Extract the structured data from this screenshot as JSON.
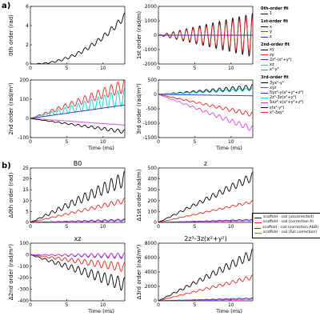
{
  "panel_labels": {
    "a": "a)",
    "b": "b)"
  },
  "legend_a": {
    "groups": [
      {
        "header": "0th-order fit",
        "items": [
          {
            "label": "1",
            "color": "#000000"
          }
        ]
      },
      {
        "header": "1st-order fit",
        "items": [
          {
            "label": "x",
            "color": "#000000"
          },
          {
            "label": "y",
            "color": "#e8231f"
          },
          {
            "label": "z",
            "color": "#2c2cc8"
          }
        ]
      },
      {
        "header": "2nd-order fit",
        "items": [
          {
            "label": "xy",
            "color": "#000000"
          },
          {
            "label": "zy",
            "color": "#e8231f"
          },
          {
            "label": "2z²-(x²+y²)",
            "color": "#2c2cc8"
          },
          {
            "label": "xz",
            "color": "#00d5d5"
          },
          {
            "label": "x²-y²",
            "color": "#e040e0"
          }
        ]
      },
      {
        "header": "3rd-order fit",
        "items": [
          {
            "label": "3yx²-y³",
            "color": "#000000"
          },
          {
            "label": "xyz",
            "color": "#e8231f"
          },
          {
            "label": "5yz²-y(x²+y²+z²)",
            "color": "#2c2cc8"
          },
          {
            "label": "2z³-3z(x²+y²)",
            "color": "#00d5d5"
          },
          {
            "label": "5xz²-x(x²+y²+z²)",
            "color": "#e040e0"
          },
          {
            "label": "z(x²-y²)",
            "color": "#000000"
          },
          {
            "label": "x³-3xy²",
            "color": "#e8231f"
          }
        ]
      }
    ]
  },
  "legend_b": {
    "items": [
      {
        "label": "scaffold - coil (uncorrected)",
        "color": "#000000"
      },
      {
        "label": "scaffold - coil (correction A)",
        "color": "#e8231f"
      },
      {
        "label": "scaffold - coil (correction A&B)",
        "color": "#2c2cc8"
      },
      {
        "label": "scaffold - coil (full correction)",
        "color": "#e040e0"
      }
    ]
  },
  "chart_data": [
    {
      "id": "a1",
      "type": "line",
      "title": "",
      "xlabel": "",
      "ylabel": "0th order (rad)",
      "xlim": [
        0,
        13
      ],
      "ylim": [
        0,
        6
      ],
      "xticks": [
        0,
        5,
        10
      ],
      "yticks": [
        0,
        2,
        4,
        6
      ],
      "series": [
        {
          "color": "#000000",
          "form": "growth",
          "end": 5.0,
          "amp": 0.35,
          "freq": 1.1
        }
      ]
    },
    {
      "id": "a2",
      "type": "line",
      "title": "",
      "xlabel": "",
      "ylabel": "1st order (rad/m)",
      "xlim": [
        0,
        13
      ],
      "ylim": [
        -2000,
        2000
      ],
      "xticks": [
        0,
        5,
        10
      ],
      "yticks": [
        -2000,
        -1000,
        0,
        1000,
        2000
      ],
      "series": [
        {
          "color": "#000000",
          "form": "osc",
          "amp": 1500,
          "freq": 1.1
        },
        {
          "color": "#e8231f",
          "form": "osc",
          "amp": 1250,
          "freq": 1.1
        },
        {
          "color": "#2c2cc8",
          "form": "flat",
          "end": 0
        }
      ]
    },
    {
      "id": "a3",
      "type": "line",
      "title": "",
      "xlabel": "Time (ms)",
      "ylabel": "2nd order (rad/m²)",
      "xlim": [
        0,
        13
      ],
      "ylim": [
        -100,
        200
      ],
      "xticks": [
        0,
        5,
        10
      ],
      "yticks": [
        -100,
        0,
        100,
        200
      ],
      "series": [
        {
          "color": "#e8231f",
          "form": "osc_up",
          "end": 170,
          "amp": 35,
          "freq": 1.1
        },
        {
          "color": "#00d5d5",
          "form": "osc_up",
          "end": 110,
          "amp": 45,
          "freq": 1.1
        },
        {
          "color": "#2c2cc8",
          "form": "drift",
          "end": 70
        },
        {
          "color": "#e040e0",
          "form": "drift",
          "end": -35
        },
        {
          "color": "#000000",
          "form": "osc_down",
          "end": -70,
          "amp": 10,
          "freq": 1.1
        }
      ]
    },
    {
      "id": "a4",
      "type": "line",
      "title": "",
      "xlabel": "Time (ms)",
      "ylabel": "3rd order (rad/m³)",
      "xlim": [
        0,
        13
      ],
      "ylim": [
        -1500,
        500
      ],
      "xticks": [
        0,
        5,
        10
      ],
      "yticks": [
        -1500,
        -1000,
        -500,
        0,
        500
      ],
      "series": [
        {
          "color": "#000000",
          "form": "osc_up",
          "end": 250,
          "amp": 90,
          "freq": 1.1
        },
        {
          "color": "#00d5d5",
          "form": "osc_up",
          "end": 180,
          "amp": 60,
          "freq": 1.1
        },
        {
          "color": "#2c2cc8",
          "form": "drift",
          "end": -50
        },
        {
          "color": "#e8231f",
          "form": "osc_down",
          "end": -700,
          "amp": 80,
          "freq": 1.1
        },
        {
          "color": "#e040e0",
          "form": "osc_down",
          "end": -1200,
          "amp": 100,
          "freq": 1.1
        }
      ]
    },
    {
      "id": "b1",
      "type": "line",
      "title": "B0",
      "xlabel": "",
      "ylabel": "Δ0th order (rad)",
      "xlim": [
        0,
        13
      ],
      "ylim": [
        0,
        25
      ],
      "xticks": [
        0,
        5,
        10
      ],
      "yticks": [
        0,
        5,
        10,
        15,
        20,
        25
      ],
      "series": [
        {
          "color": "#000000",
          "form": "osc_up",
          "end": 20,
          "amp": 3.5,
          "freq": 1.1
        },
        {
          "color": "#e8231f",
          "form": "osc_up",
          "end": 10,
          "amp": 1.2,
          "freq": 1.1
        },
        {
          "color": "#2c2cc8",
          "form": "osc_up",
          "end": 1.2,
          "amp": 0.4,
          "freq": 1.1
        },
        {
          "color": "#e040e0",
          "form": "osc_up",
          "end": 0.8,
          "amp": 0.4,
          "freq": 1.1
        }
      ]
    },
    {
      "id": "b2",
      "type": "line",
      "title": "z",
      "xlabel": "",
      "ylabel": "Δ1st order (rad/m)",
      "xlim": [
        0,
        13
      ],
      "ylim": [
        0,
        500
      ],
      "xticks": [
        0,
        5,
        10
      ],
      "yticks": [
        0,
        100,
        200,
        300,
        400,
        500
      ],
      "series": [
        {
          "color": "#000000",
          "form": "osc_up",
          "end": 420,
          "amp": 40,
          "freq": 1.1
        },
        {
          "color": "#e8231f",
          "form": "osc_up",
          "end": 190,
          "amp": 12,
          "freq": 1.1
        },
        {
          "color": "#2c2cc8",
          "form": "osc_up",
          "end": 25,
          "amp": 4,
          "freq": 1.1
        },
        {
          "color": "#e040e0",
          "form": "osc_up",
          "end": 15,
          "amp": 3,
          "freq": 1.1
        }
      ]
    },
    {
      "id": "b3",
      "type": "line",
      "title": "xz",
      "xlabel": "Time (ms)",
      "ylabel": "Δ2nd order (rad/m²)",
      "xlim": [
        0,
        13
      ],
      "ylim": [
        -400,
        100
      ],
      "xticks": [
        0,
        5,
        10
      ],
      "yticks": [
        -400,
        -300,
        -200,
        -100,
        0,
        100
      ],
      "series": [
        {
          "color": "#000000",
          "form": "osc_down",
          "end": -260,
          "amp": 60,
          "freq": 1.1
        },
        {
          "color": "#e8231f",
          "form": "osc_down",
          "end": -110,
          "amp": 40,
          "freq": 1.1
        },
        {
          "color": "#2c2cc8",
          "form": "osc_down",
          "end": -10,
          "amp": 25,
          "freq": 1.1
        },
        {
          "color": "#e040e0",
          "form": "osc_down",
          "end": -5,
          "amp": 20,
          "freq": 1.1
        }
      ]
    },
    {
      "id": "b4",
      "type": "line",
      "title": "2z³-3z(x²+y²)",
      "xlabel": "Time (ms)",
      "ylabel": "Δ3rd order (rad/m³)",
      "xlim": [
        0,
        13
      ],
      "ylim": [
        0,
        8000
      ],
      "xticks": [
        0,
        5,
        10
      ],
      "yticks": [
        0,
        2000,
        4000,
        6000,
        8000
      ],
      "series": [
        {
          "color": "#000000",
          "form": "osc_up",
          "end": 6500,
          "amp": 700,
          "freq": 1.1
        },
        {
          "color": "#e8231f",
          "form": "osc_up",
          "end": 3300,
          "amp": 300,
          "freq": 1.1
        },
        {
          "color": "#2c2cc8",
          "form": "osc_up",
          "end": 350,
          "amp": 60,
          "freq": 1.1
        },
        {
          "color": "#e040e0",
          "form": "osc_up",
          "end": 200,
          "amp": 40,
          "freq": 1.1
        }
      ]
    }
  ]
}
